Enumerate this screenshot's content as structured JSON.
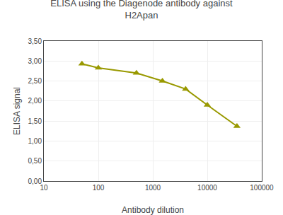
{
  "chart_data": {
    "type": "line",
    "title": "ELISA using the Diagenode antibody against\nH2Apan",
    "xlabel": "Antibody dilution",
    "ylabel": "ELISA signal",
    "x": [
      50,
      100,
      500,
      1500,
      4000,
      10000,
      35000
    ],
    "values": [
      2.93,
      2.83,
      2.7,
      2.5,
      2.3,
      1.9,
      1.37
    ],
    "color": "#999900",
    "marker": "triangle-up",
    "log": "x",
    "grid": true,
    "xlim": [
      10,
      100000
    ],
    "xticks": [
      10,
      100,
      1000,
      10000,
      100000
    ],
    "ylim": [
      0.0,
      3.5
    ],
    "yticks": [
      {
        "value": 0.0,
        "label": "0,00"
      },
      {
        "value": 0.5,
        "label": "0,50"
      },
      {
        "value": 1.0,
        "label": "1,00"
      },
      {
        "value": 1.5,
        "label": "1,50"
      },
      {
        "value": 2.0,
        "label": "2,00"
      },
      {
        "value": 2.5,
        "label": "2,50"
      },
      {
        "value": 3.0,
        "label": "3,00"
      },
      {
        "value": 3.5,
        "label": "3,50"
      }
    ]
  }
}
